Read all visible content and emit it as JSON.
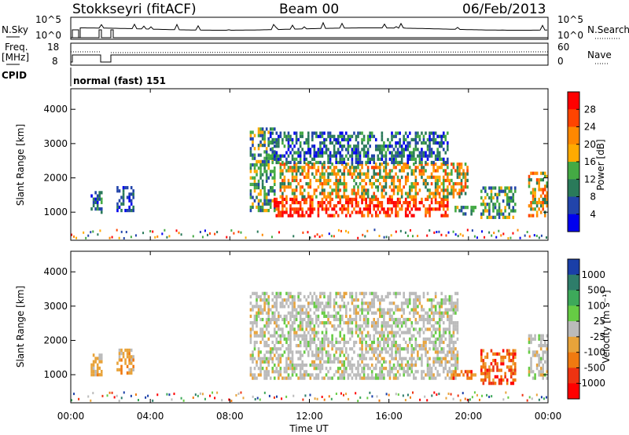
{
  "header": {
    "station": "Stokkseyri (fitACF)",
    "beam": "Beam 00",
    "date": "06/Feb/2013"
  },
  "status_panel": {
    "nsky_label": "N.Sky",
    "nsky_top": "10^5",
    "nsky_bottom": "10^0",
    "nsearch_label": "N.Search",
    "nsearch_top": "10^5",
    "nsearch_bottom": "10^0",
    "freq_label_1": "Freq.",
    "freq_label_2": "[MHz]",
    "freq_top": "18",
    "freq_bottom": "8",
    "nave_label": "Nave",
    "nave_top": "60",
    "nave_bottom": "0",
    "cpid_label": "CPID",
    "cpid_value": "normal (fast) 151"
  },
  "power_panel": {
    "ylabel": "Slant Range [km]",
    "colorbar_label": "Power [dB]",
    "colorbar_ticks": [
      "28",
      "24",
      "20",
      "16",
      "12",
      "8",
      "4"
    ],
    "colors": [
      "#ff0000",
      "#ff4400",
      "#ff8800",
      "#ffaa00",
      "#44aa44",
      "#2a7a5a",
      "#2244aa",
      "#0000ee"
    ]
  },
  "velocity_panel": {
    "ylabel": "Slant Range [km]",
    "colorbar_label": "Velocity [m s⁻¹]",
    "colorbar_ticks": [
      "1000",
      "500",
      "100",
      "25",
      "-25",
      "-100",
      "-500",
      "-1000"
    ],
    "colors": [
      "#1a3fa8",
      "#2e7d6a",
      "#3da95a",
      "#66cc44",
      "#bbbbbb",
      "#e8a33a",
      "#f07a10",
      "#ee3311",
      "#ff0000"
    ]
  },
  "x_axis": {
    "label": "Time UT",
    "ticks": [
      "00:00",
      "04:00",
      "08:00",
      "12:00",
      "16:00",
      "20:00",
      "00:00"
    ]
  },
  "y_axis": {
    "ticks": [
      "1000",
      "2000",
      "3000",
      "4000"
    ]
  },
  "chart_data": [
    {
      "type": "heatmap",
      "title": "Power",
      "xlabel": "Time UT",
      "ylabel": "Slant Range [km]",
      "xlim": [
        "00:00",
        "24:00"
      ],
      "ylim": [
        180,
        4600
      ],
      "colorbar": {
        "label": "Power [dB]",
        "ticks": [
          28,
          24,
          20,
          16,
          12,
          8,
          4
        ],
        "range": [
          0,
          30
        ]
      },
      "regions": [
        {
          "t_start": 1.0,
          "t_end": 1.6,
          "r_min": 950,
          "r_max": 1600,
          "level": "low-mid"
        },
        {
          "t_start": 2.3,
          "t_end": 3.2,
          "r_min": 1000,
          "r_max": 1750,
          "level": "low"
        },
        {
          "t_start": 9.0,
          "t_end": 10.2,
          "r_min": 1000,
          "r_max": 3400,
          "level": "mid"
        },
        {
          "t_start": 10.2,
          "t_end": 19.0,
          "r_min": 850,
          "r_max": 1400,
          "level": "high"
        },
        {
          "t_start": 10.5,
          "t_end": 20.0,
          "r_min": 1400,
          "r_max": 2400,
          "level": "mid-high"
        },
        {
          "t_start": 10.0,
          "t_end": 19.0,
          "r_min": 2400,
          "r_max": 3300,
          "level": "low-mid"
        },
        {
          "t_start": 19.2,
          "t_end": 20.4,
          "r_min": 900,
          "r_max": 1150,
          "level": "mid"
        },
        {
          "t_start": 20.6,
          "t_end": 22.4,
          "r_min": 800,
          "r_max": 1700,
          "level": "mid"
        },
        {
          "t_start": 23.0,
          "t_end": 24.0,
          "r_min": 850,
          "r_max": 2100,
          "level": "mid-high"
        }
      ]
    },
    {
      "type": "heatmap",
      "title": "Velocity",
      "xlabel": "Time UT",
      "ylabel": "Slant Range [km]",
      "xlim": [
        "00:00",
        "24:00"
      ],
      "ylim": [
        180,
        4600
      ],
      "colorbar": {
        "label": "Velocity [m s⁻¹]",
        "ticks": [
          1000,
          500,
          100,
          25,
          -25,
          -100,
          -500,
          -1000
        ]
      },
      "regions": [
        {
          "t_start": 1.0,
          "t_end": 1.6,
          "r_min": 950,
          "r_max": 1600,
          "level": "-100"
        },
        {
          "t_start": 2.3,
          "t_end": 3.2,
          "r_min": 1000,
          "r_max": 1750,
          "level": "-100"
        },
        {
          "t_start": 9.0,
          "t_end": 19.5,
          "r_min": 850,
          "r_max": 3400,
          "level": "~0"
        },
        {
          "t_start": 19.2,
          "t_end": 20.4,
          "r_min": 850,
          "r_max": 1100,
          "level": "-500"
        },
        {
          "t_start": 20.6,
          "t_end": 22.4,
          "r_min": 700,
          "r_max": 1700,
          "level": "-500"
        },
        {
          "t_start": 23.0,
          "t_end": 24.0,
          "r_min": 850,
          "r_max": 2100,
          "level": "~0"
        }
      ]
    }
  ]
}
